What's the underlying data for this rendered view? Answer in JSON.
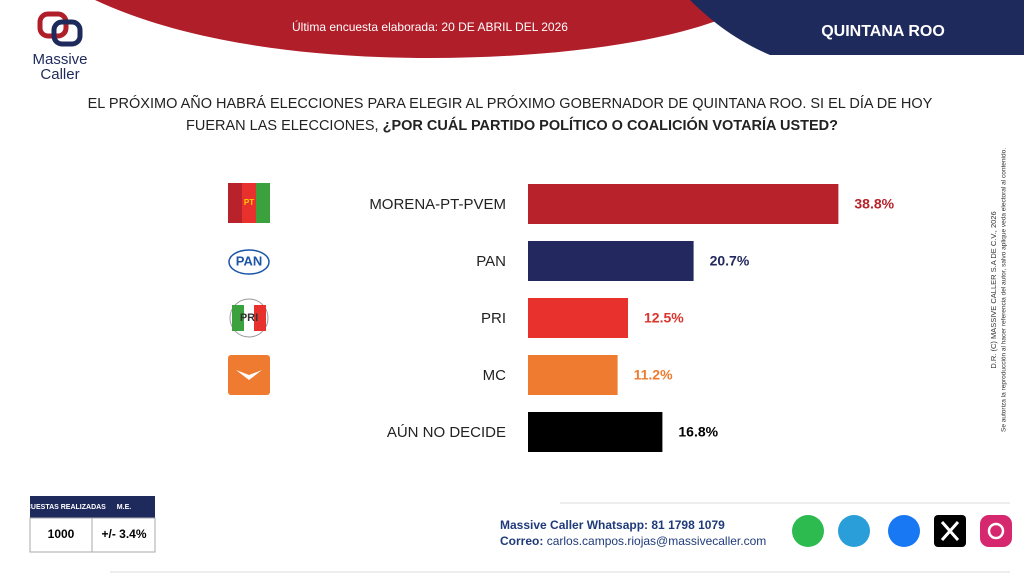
{
  "brand": {
    "line1": "Massive",
    "line2": "Caller"
  },
  "header": {
    "survey_date": "Última encuesta elaborada: 20 DE ABRIL DEL 2026",
    "region": "QUINTANA ROO"
  },
  "chart_data": {
    "type": "bar",
    "orientation": "horizontal",
    "title": "EL PRÓXIMO AÑO HABRÁ ELECCIONES PARA ELEGIR AL PRÓXIMO GOBERNADOR DE QUINTANA ROO. SI EL DÍA DE HOY",
    "title_line2": "FUERAN LAS ELECCIONES,",
    "title_emphasis": "¿POR CUÁL PARTIDO POLÍTICO O COALICIÓN VOTARÍA USTED?",
    "categories": [
      "MORENA-PT-PVEM",
      "PAN",
      "PRI",
      "MC",
      "AÚN NO DECIDE"
    ],
    "values": [
      38.8,
      20.7,
      12.5,
      11.2,
      16.8
    ],
    "value_labels": [
      "38.8%",
      "20.7%",
      "12.5%",
      "11.2%",
      "16.8%"
    ],
    "colors": [
      "#b8232b",
      "#23295e",
      "#e8302c",
      "#ee7b30",
      "#000000"
    ],
    "label_colors": [
      "#b8232b",
      "#23295e",
      "#d8352c",
      "#ee7b30",
      "#000000"
    ]
  },
  "logos": [
    "PT",
    "PAN",
    "PRI"
  ],
  "survey_table": {
    "headers": [
      "ENCUESTAS REALIZADAS",
      "M.E."
    ],
    "row": [
      "1000",
      "+/- 3.4%"
    ]
  },
  "contact": {
    "whatsapp": "Massive Caller Whatsapp: 81 1798 1079",
    "email_label": "Correo:",
    "email": "carlos.campos.riojas@massivecaller.com"
  },
  "copyright": {
    "line1": "D.R. (C) MASSIVE CALLER S.A DE C.V., 2026",
    "line2": "Se autoriza la reproducción al hacer referencia del autor, salvo aplique veda electoral al contenido."
  }
}
